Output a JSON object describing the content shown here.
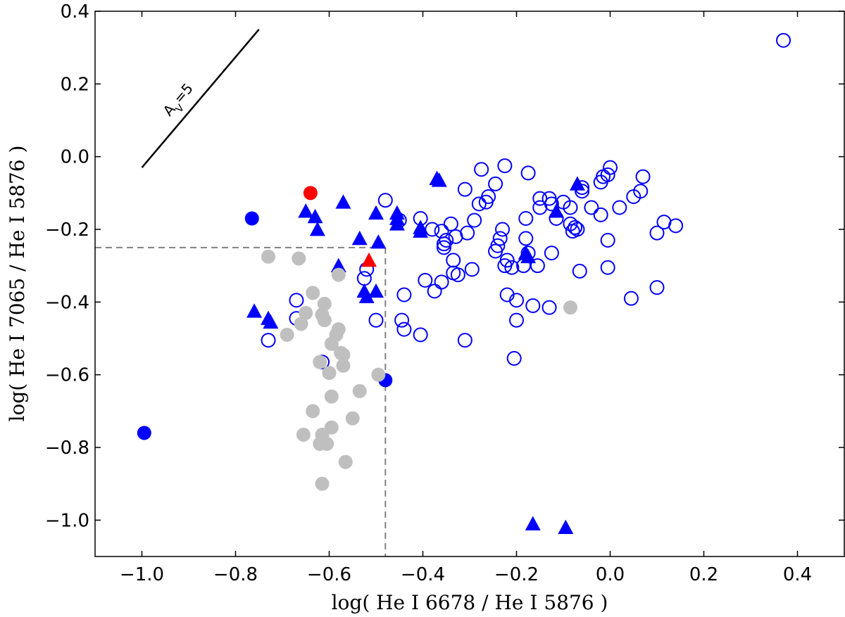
{
  "chart_data": {
    "type": "scatter",
    "title": "",
    "xlabel": "log( He I 6678 / He I 5876 )",
    "ylabel": "log( He I 7065 / He I 5876 )",
    "xlim": [
      -1.1,
      0.5
    ],
    "ylim": [
      -1.1,
      0.4
    ],
    "xticks": [
      -1.0,
      -0.8,
      -0.6,
      -0.4,
      -0.2,
      0.0,
      0.2,
      0.4
    ],
    "yticks": [
      0.4,
      0.2,
      0.0,
      -0.2,
      -0.4,
      -0.6,
      -0.8,
      -1.0
    ],
    "xtick_labels": [
      "−1.0",
      "−0.8",
      "−0.6",
      "−0.4",
      "−0.2",
      "0.0",
      "0.2",
      "0.4"
    ],
    "ytick_labels": [
      "0.4",
      "0.2",
      "0.0",
      "−0.2",
      "−0.4",
      "−0.6",
      "−0.8",
      "−1.0"
    ],
    "grid": false,
    "colors": {
      "blue": "#0000ff",
      "red": "#ff0000",
      "gray": "#bfbfbf",
      "dashed": "#808080"
    },
    "reddening_vector": {
      "label": "AV=5",
      "label_main": "A",
      "label_sub": "V",
      "label_rest": "=5",
      "from": [
        -1.0,
        -0.03
      ],
      "to": [
        -0.75,
        0.35
      ]
    },
    "threshold_lines": {
      "x": -0.48,
      "y": -0.25
    },
    "series": [
      {
        "marker": "open-circle",
        "color": "#0000ff",
        "points": [
          [
            0.37,
            0.32
          ],
          [
            -0.275,
            -0.035
          ],
          [
            -0.225,
            -0.025
          ],
          [
            -0.175,
            -0.045
          ],
          [
            0.0,
            -0.03
          ],
          [
            -0.005,
            -0.05
          ],
          [
            -0.015,
            -0.055
          ],
          [
            -0.02,
            -0.07
          ],
          [
            0.07,
            -0.055
          ],
          [
            -0.06,
            -0.085
          ],
          [
            -0.245,
            -0.075
          ],
          [
            -0.26,
            -0.11
          ],
          [
            -0.265,
            -0.125
          ],
          [
            -0.31,
            -0.09
          ],
          [
            -0.28,
            -0.13
          ],
          [
            -0.15,
            -0.115
          ],
          [
            -0.13,
            -0.115
          ],
          [
            -0.125,
            -0.13
          ],
          [
            -0.15,
            -0.14
          ],
          [
            -0.1,
            -0.125
          ],
          [
            -0.085,
            -0.14
          ],
          [
            -0.06,
            -0.095
          ],
          [
            -0.04,
            -0.14
          ],
          [
            0.02,
            -0.14
          ],
          [
            0.05,
            -0.11
          ],
          [
            0.065,
            -0.095
          ],
          [
            -0.02,
            -0.16
          ],
          [
            -0.115,
            -0.17
          ],
          [
            -0.18,
            -0.17
          ],
          [
            -0.29,
            -0.175
          ],
          [
            -0.34,
            -0.185
          ],
          [
            -0.405,
            -0.17
          ],
          [
            -0.48,
            -0.12
          ],
          [
            -0.45,
            -0.175
          ],
          [
            -0.38,
            -0.2
          ],
          [
            -0.36,
            -0.205
          ],
          [
            -0.35,
            -0.23
          ],
          [
            -0.33,
            -0.22
          ],
          [
            -0.305,
            -0.21
          ],
          [
            -0.23,
            -0.2
          ],
          [
            -0.235,
            -0.225
          ],
          [
            -0.24,
            -0.245
          ],
          [
            -0.245,
            -0.26
          ],
          [
            -0.18,
            -0.225
          ],
          [
            -0.085,
            -0.185
          ],
          [
            -0.075,
            -0.195
          ],
          [
            -0.08,
            -0.205
          ],
          [
            -0.07,
            -0.2
          ],
          [
            0.14,
            -0.19
          ],
          [
            0.115,
            -0.18
          ],
          [
            0.1,
            -0.21
          ],
          [
            -0.005,
            -0.23
          ],
          [
            -0.125,
            -0.265
          ],
          [
            -0.175,
            -0.265
          ],
          [
            -0.185,
            -0.3
          ],
          [
            -0.155,
            -0.3
          ],
          [
            -0.21,
            -0.305
          ],
          [
            -0.225,
            -0.3
          ],
          [
            -0.22,
            -0.285
          ],
          [
            -0.335,
            -0.285
          ],
          [
            -0.355,
            -0.24
          ],
          [
            -0.355,
            -0.25
          ],
          [
            -0.36,
            -0.345
          ],
          [
            -0.335,
            -0.32
          ],
          [
            -0.325,
            -0.325
          ],
          [
            -0.295,
            -0.31
          ],
          [
            -0.065,
            -0.315
          ],
          [
            -0.005,
            -0.305
          ],
          [
            -0.395,
            -0.34
          ],
          [
            -0.44,
            -0.38
          ],
          [
            -0.375,
            -0.37
          ],
          [
            -0.22,
            -0.38
          ],
          [
            -0.2,
            -0.395
          ],
          [
            -0.165,
            -0.41
          ],
          [
            -0.13,
            -0.415
          ],
          [
            0.045,
            -0.39
          ],
          [
            0.1,
            -0.36
          ],
          [
            -0.52,
            -0.31
          ],
          [
            -0.525,
            -0.335
          ],
          [
            -0.5,
            -0.45
          ],
          [
            -0.445,
            -0.45
          ],
          [
            -0.44,
            -0.475
          ],
          [
            -0.405,
            -0.49
          ],
          [
            -0.31,
            -0.505
          ],
          [
            -0.2,
            -0.45
          ],
          [
            -0.205,
            -0.555
          ],
          [
            -0.67,
            -0.395
          ],
          [
            -0.67,
            -0.445
          ],
          [
            -0.73,
            -0.505
          ],
          [
            -0.615,
            -0.565
          ]
        ]
      },
      {
        "marker": "filled-triangle",
        "color": "#0000ff",
        "points": [
          [
            -0.37,
            -0.06
          ],
          [
            -0.365,
            -0.065
          ],
          [
            -0.07,
            -0.075
          ],
          [
            -0.57,
            -0.125
          ],
          [
            -0.65,
            -0.15
          ],
          [
            -0.63,
            -0.165
          ],
          [
            -0.625,
            -0.2
          ],
          [
            -0.5,
            -0.155
          ],
          [
            -0.455,
            -0.155
          ],
          [
            -0.455,
            -0.17
          ],
          [
            -0.455,
            -0.185
          ],
          [
            -0.405,
            -0.195
          ],
          [
            -0.405,
            -0.205
          ],
          [
            -0.535,
            -0.225
          ],
          [
            -0.495,
            -0.235
          ],
          [
            -0.115,
            -0.15
          ],
          [
            -0.18,
            -0.265
          ],
          [
            -0.175,
            -0.275
          ],
          [
            -0.58,
            -0.3
          ],
          [
            -0.525,
            -0.37
          ],
          [
            -0.5,
            -0.37
          ],
          [
            -0.52,
            -0.385
          ],
          [
            -0.76,
            -0.425
          ],
          [
            -0.73,
            -0.445
          ],
          [
            -0.725,
            -0.455
          ],
          [
            -0.165,
            -1.01
          ],
          [
            -0.095,
            -1.02
          ]
        ]
      },
      {
        "marker": "filled-circle",
        "color": "#0000ff",
        "points": [
          [
            -0.765,
            -0.17
          ],
          [
            -0.48,
            -0.615
          ],
          [
            -0.995,
            -0.76
          ]
        ]
      },
      {
        "marker": "filled-circle",
        "color": "#ff0000",
        "points": [
          [
            -0.64,
            -0.1
          ]
        ]
      },
      {
        "marker": "filled-triangle",
        "color": "#ff0000",
        "points": [
          [
            -0.515,
            -0.285
          ]
        ]
      },
      {
        "marker": "filled-circle",
        "color": "#bfbfbf",
        "points": [
          [
            -0.73,
            -0.275
          ],
          [
            -0.665,
            -0.28
          ],
          [
            -0.58,
            -0.325
          ],
          [
            -0.635,
            -0.375
          ],
          [
            -0.61,
            -0.405
          ],
          [
            -0.65,
            -0.43
          ],
          [
            -0.615,
            -0.435
          ],
          [
            -0.61,
            -0.45
          ],
          [
            -0.66,
            -0.46
          ],
          [
            -0.69,
            -0.49
          ],
          [
            -0.58,
            -0.475
          ],
          [
            -0.585,
            -0.49
          ],
          [
            -0.595,
            -0.515
          ],
          [
            -0.575,
            -0.54
          ],
          [
            -0.57,
            -0.545
          ],
          [
            -0.62,
            -0.565
          ],
          [
            -0.57,
            -0.575
          ],
          [
            -0.6,
            -0.595
          ],
          [
            -0.495,
            -0.6
          ],
          [
            -0.535,
            -0.645
          ],
          [
            -0.595,
            -0.66
          ],
          [
            -0.635,
            -0.7
          ],
          [
            -0.55,
            -0.72
          ],
          [
            -0.655,
            -0.765
          ],
          [
            -0.595,
            -0.745
          ],
          [
            -0.615,
            -0.765
          ],
          [
            -0.62,
            -0.79
          ],
          [
            -0.605,
            -0.79
          ],
          [
            -0.565,
            -0.84
          ],
          [
            -0.615,
            -0.9
          ],
          [
            -0.085,
            -0.415
          ]
        ]
      }
    ]
  }
}
